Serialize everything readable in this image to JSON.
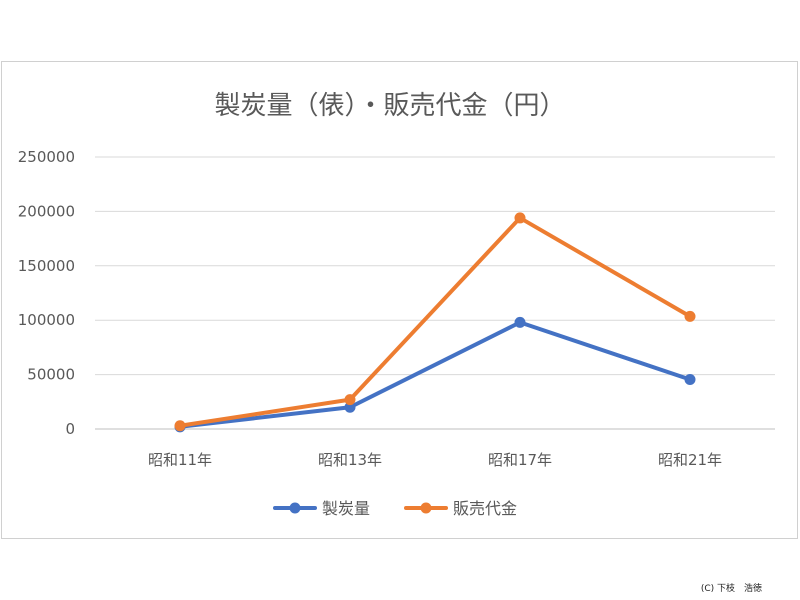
{
  "chart_data": {
    "type": "line",
    "title": "製炭量（俵）・販売代金（円）",
    "categories": [
      "昭和11年",
      "昭和13年",
      "昭和17年",
      "昭和21年"
    ],
    "series": [
      {
        "name": "製炭量",
        "values": [
          2000,
          20000,
          98000,
          45500
        ],
        "color": "#4472C4"
      },
      {
        "name": "販売代金",
        "values": [
          3000,
          27000,
          194000,
          103500
        ],
        "color": "#ED7D31"
      }
    ],
    "ylim": [
      0,
      250000
    ],
    "yticks": [
      0,
      50000,
      100000,
      150000,
      200000,
      250000
    ],
    "xlabel": "",
    "ylabel": "",
    "grid": true,
    "legend": "bottom"
  },
  "copyright": "(C) 下枝　浩徳"
}
